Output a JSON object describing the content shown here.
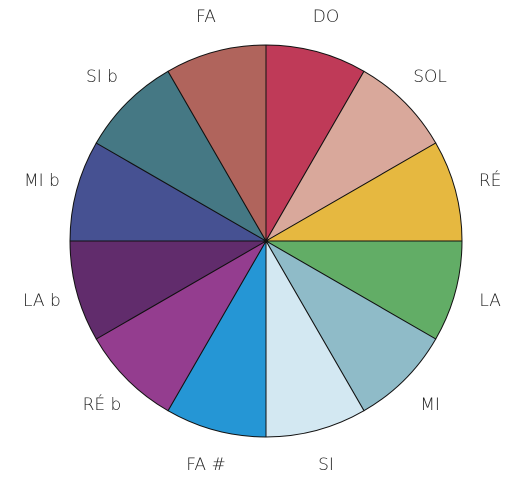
{
  "segments": [
    {
      "label": "DO",
      "color": "#bf3a58"
    },
    {
      "label": "SOL",
      "color": "#d9a89b"
    },
    {
      "label": "RÉ",
      "color": "#e6b840"
    },
    {
      "label": "LA",
      "color": "#62ad66"
    },
    {
      "label": "MI",
      "color": "#8fbbc8"
    },
    {
      "label": "SI",
      "color": "#d3e8f2"
    },
    {
      "label": "FA #",
      "color": "#2596d5"
    },
    {
      "label": "RÉ b",
      "color": "#943d8f"
    },
    {
      "label": "LA b",
      "color": "#612c6c"
    },
    {
      "label": "MI b",
      "color": "#465192"
    },
    {
      "label": "SI b",
      "color": "#457884"
    },
    {
      "label": "FA",
      "color": "#b0645c"
    }
  ]
}
